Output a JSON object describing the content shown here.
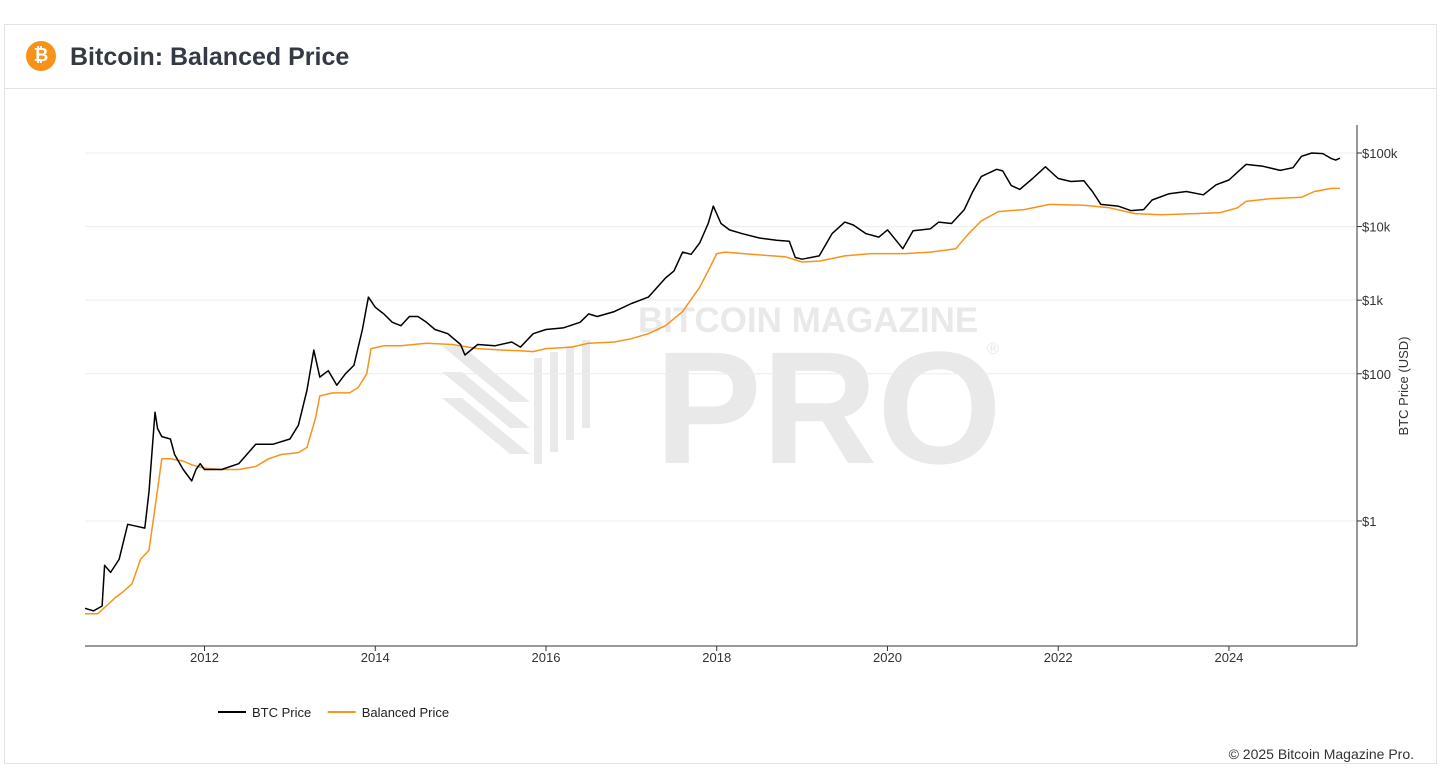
{
  "header": {
    "title": "Bitcoin: Balanced Price",
    "logo_glyph": "₿"
  },
  "watermark": {
    "line1": "BITCOIN MAGAZINE",
    "line2": "PRO",
    "registered": "®"
  },
  "footer": {
    "copyright": "© 2025 Bitcoin Magazine Pro."
  },
  "colors": {
    "btc_price": "#000000",
    "balanced_price": "#f7931a",
    "logo": "#f7931a",
    "grid": "#ececec"
  },
  "chart_data": {
    "type": "line",
    "title": "Bitcoin: Balanced Price",
    "xlabel": "",
    "ylabel": "BTC Price (USD)",
    "y_scale": "log",
    "y_ticks": [
      {
        "value": 1,
        "label": "$1"
      },
      {
        "value": 100,
        "label": "$100"
      },
      {
        "value": 1000,
        "label": "$1k"
      },
      {
        "value": 10000,
        "label": "$10k"
      },
      {
        "value": 100000,
        "label": "$100k"
      }
    ],
    "x_ticks": [
      {
        "value": 2012,
        "label": "2012"
      },
      {
        "value": 2014,
        "label": "2014"
      },
      {
        "value": 2016,
        "label": "2016"
      },
      {
        "value": 2018,
        "label": "2018"
      },
      {
        "value": 2020,
        "label": "2020"
      },
      {
        "value": 2022,
        "label": "2022"
      },
      {
        "value": 2024,
        "label": "2024"
      }
    ],
    "xlim": [
      2010.6,
      2025.5
    ],
    "ylim": [
      0.02,
      240000
    ],
    "grid": true,
    "legend_position": "bottom-left",
    "series": [
      {
        "name": "BTC Price",
        "color": "#000000",
        "points": [
          [
            2010.6,
            0.065
          ],
          [
            2010.7,
            0.06
          ],
          [
            2010.8,
            0.07
          ],
          [
            2010.83,
            0.25
          ],
          [
            2010.9,
            0.2
          ],
          [
            2011.0,
            0.3
          ],
          [
            2011.1,
            0.9
          ],
          [
            2011.2,
            0.85
          ],
          [
            2011.3,
            0.8
          ],
          [
            2011.35,
            2.5
          ],
          [
            2011.42,
            30
          ],
          [
            2011.45,
            18
          ],
          [
            2011.5,
            14
          ],
          [
            2011.6,
            13
          ],
          [
            2011.65,
            8
          ],
          [
            2011.75,
            5
          ],
          [
            2011.85,
            3.5
          ],
          [
            2011.9,
            5
          ],
          [
            2011.95,
            6
          ],
          [
            2012.0,
            5
          ],
          [
            2012.2,
            5
          ],
          [
            2012.4,
            6
          ],
          [
            2012.6,
            11
          ],
          [
            2012.8,
            11
          ],
          [
            2013.0,
            13
          ],
          [
            2013.1,
            20
          ],
          [
            2013.2,
            60
          ],
          [
            2013.28,
            210
          ],
          [
            2013.35,
            90
          ],
          [
            2013.45,
            110
          ],
          [
            2013.55,
            70
          ],
          [
            2013.65,
            100
          ],
          [
            2013.75,
            130
          ],
          [
            2013.85,
            400
          ],
          [
            2013.92,
            1100
          ],
          [
            2014.0,
            800
          ],
          [
            2014.1,
            650
          ],
          [
            2014.2,
            500
          ],
          [
            2014.3,
            450
          ],
          [
            2014.4,
            600
          ],
          [
            2014.5,
            600
          ],
          [
            2014.6,
            500
          ],
          [
            2014.7,
            400
          ],
          [
            2014.85,
            350
          ],
          [
            2015.0,
            250
          ],
          [
            2015.05,
            180
          ],
          [
            2015.2,
            250
          ],
          [
            2015.4,
            240
          ],
          [
            2015.6,
            270
          ],
          [
            2015.7,
            230
          ],
          [
            2015.85,
            350
          ],
          [
            2016.0,
            400
          ],
          [
            2016.2,
            420
          ],
          [
            2016.4,
            500
          ],
          [
            2016.5,
            650
          ],
          [
            2016.6,
            600
          ],
          [
            2016.8,
            700
          ],
          [
            2017.0,
            900
          ],
          [
            2017.2,
            1100
          ],
          [
            2017.4,
            2000
          ],
          [
            2017.5,
            2500
          ],
          [
            2017.6,
            4500
          ],
          [
            2017.7,
            4200
          ],
          [
            2017.8,
            6000
          ],
          [
            2017.9,
            11000
          ],
          [
            2017.96,
            19000
          ],
          [
            2018.05,
            11000
          ],
          [
            2018.15,
            9000
          ],
          [
            2018.3,
            8000
          ],
          [
            2018.5,
            7000
          ],
          [
            2018.7,
            6500
          ],
          [
            2018.85,
            6300
          ],
          [
            2018.92,
            3800
          ],
          [
            2019.0,
            3600
          ],
          [
            2019.2,
            4000
          ],
          [
            2019.35,
            8000
          ],
          [
            2019.5,
            11500
          ],
          [
            2019.6,
            10500
          ],
          [
            2019.75,
            8000
          ],
          [
            2019.9,
            7200
          ],
          [
            2020.0,
            9000
          ],
          [
            2020.18,
            5000
          ],
          [
            2020.3,
            8800
          ],
          [
            2020.5,
            9300
          ],
          [
            2020.6,
            11500
          ],
          [
            2020.75,
            11000
          ],
          [
            2020.9,
            17000
          ],
          [
            2021.0,
            30000
          ],
          [
            2021.1,
            48000
          ],
          [
            2021.28,
            60000
          ],
          [
            2021.35,
            57000
          ],
          [
            2021.45,
            36000
          ],
          [
            2021.55,
            32000
          ],
          [
            2021.7,
            45000
          ],
          [
            2021.85,
            65000
          ],
          [
            2022.0,
            45000
          ],
          [
            2022.15,
            41000
          ],
          [
            2022.3,
            42000
          ],
          [
            2022.4,
            30000
          ],
          [
            2022.5,
            20000
          ],
          [
            2022.7,
            19000
          ],
          [
            2022.85,
            16500
          ],
          [
            2023.0,
            17000
          ],
          [
            2023.1,
            23000
          ],
          [
            2023.3,
            28000
          ],
          [
            2023.5,
            30000
          ],
          [
            2023.7,
            27000
          ],
          [
            2023.85,
            37000
          ],
          [
            2024.0,
            43000
          ],
          [
            2024.2,
            70000
          ],
          [
            2024.4,
            66000
          ],
          [
            2024.6,
            58000
          ],
          [
            2024.75,
            63000
          ],
          [
            2024.85,
            90000
          ],
          [
            2024.97,
            100000
          ],
          [
            2025.1,
            98000
          ],
          [
            2025.2,
            84000
          ],
          [
            2025.25,
            80000
          ],
          [
            2025.3,
            85000
          ]
        ]
      },
      {
        "name": "Balanced Price",
        "color": "#f7931a",
        "points": [
          [
            2010.6,
            0.055
          ],
          [
            2010.75,
            0.055
          ],
          [
            2010.85,
            0.07
          ],
          [
            2010.95,
            0.09
          ],
          [
            2011.05,
            0.11
          ],
          [
            2011.15,
            0.14
          ],
          [
            2011.25,
            0.3
          ],
          [
            2011.35,
            0.4
          ],
          [
            2011.42,
            1.5
          ],
          [
            2011.5,
            7
          ],
          [
            2011.6,
            7
          ],
          [
            2011.75,
            6.5
          ],
          [
            2011.85,
            5.8
          ],
          [
            2012.0,
            5.2
          ],
          [
            2012.2,
            5.0
          ],
          [
            2012.4,
            5.0
          ],
          [
            2012.6,
            5.5
          ],
          [
            2012.75,
            7
          ],
          [
            2012.9,
            8
          ],
          [
            2013.1,
            8.5
          ],
          [
            2013.2,
            10
          ],
          [
            2013.3,
            25
          ],
          [
            2013.35,
            50
          ],
          [
            2013.5,
            55
          ],
          [
            2013.7,
            55
          ],
          [
            2013.8,
            65
          ],
          [
            2013.9,
            100
          ],
          [
            2013.95,
            220
          ],
          [
            2014.1,
            240
          ],
          [
            2014.3,
            240
          ],
          [
            2014.6,
            260
          ],
          [
            2014.9,
            250
          ],
          [
            2015.2,
            220
          ],
          [
            2015.5,
            210
          ],
          [
            2015.7,
            205
          ],
          [
            2015.85,
            200
          ],
          [
            2016.0,
            220
          ],
          [
            2016.3,
            230
          ],
          [
            2016.5,
            260
          ],
          [
            2016.8,
            270
          ],
          [
            2017.0,
            300
          ],
          [
            2017.2,
            350
          ],
          [
            2017.4,
            450
          ],
          [
            2017.6,
            700
          ],
          [
            2017.8,
            1500
          ],
          [
            2017.9,
            2500
          ],
          [
            2018.0,
            4300
          ],
          [
            2018.1,
            4500
          ],
          [
            2018.4,
            4200
          ],
          [
            2018.8,
            3900
          ],
          [
            2019.0,
            3300
          ],
          [
            2019.2,
            3400
          ],
          [
            2019.5,
            4000
          ],
          [
            2019.8,
            4300
          ],
          [
            2020.2,
            4300
          ],
          [
            2020.5,
            4500
          ],
          [
            2020.8,
            5000
          ],
          [
            2020.95,
            8000
          ],
          [
            2021.1,
            12000
          ],
          [
            2021.3,
            16000
          ],
          [
            2021.6,
            17000
          ],
          [
            2021.9,
            20000
          ],
          [
            2022.3,
            19500
          ],
          [
            2022.6,
            18000
          ],
          [
            2022.9,
            15000
          ],
          [
            2023.2,
            14500
          ],
          [
            2023.6,
            15000
          ],
          [
            2023.9,
            15500
          ],
          [
            2024.1,
            18000
          ],
          [
            2024.2,
            22000
          ],
          [
            2024.5,
            24000
          ],
          [
            2024.85,
            25000
          ],
          [
            2025.0,
            30000
          ],
          [
            2025.2,
            33000
          ],
          [
            2025.3,
            33000
          ]
        ]
      }
    ]
  }
}
